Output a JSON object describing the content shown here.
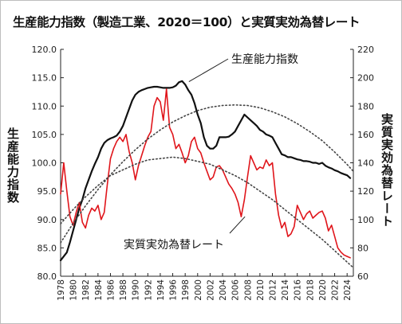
{
  "title": "生産能力指数（製造工業、2020＝100）と実質実効為替レート",
  "chart_data": {
    "type": "line",
    "title": "生産能力指数（製造工業、2020＝100）と実質実効為替レート",
    "xlabel": "",
    "xlim": [
      1978,
      2025
    ],
    "x_ticks": [
      "1978",
      "1980",
      "1982",
      "1984",
      "1986",
      "1988",
      "1990",
      "1992",
      "1994",
      "1996",
      "1998",
      "2000",
      "2002",
      "2004",
      "2006",
      "2008",
      "2010",
      "2012",
      "2014",
      "2016",
      "2018",
      "2020",
      "2022",
      "2024"
    ],
    "y_left": {
      "label": "生産能力指数",
      "range": [
        80,
        120
      ],
      "ticks": [
        "80.0",
        "85.0",
        "90.0",
        "95.0",
        "100.0",
        "105.0",
        "110.0",
        "115.0",
        "120.0"
      ]
    },
    "y_right": {
      "label": "実質実効為替レート",
      "range": [
        60,
        220
      ],
      "ticks": [
        "60",
        "80",
        "100",
        "120",
        "140",
        "160",
        "180",
        "200",
        "220"
      ]
    },
    "grid": false,
    "legend": "annotations",
    "annotations": [
      {
        "text": "生産能力指数",
        "series": "生産能力指数"
      },
      {
        "text": "実質実効為替レート",
        "series": "実質実効為替レート"
      }
    ],
    "series": [
      {
        "name": "生産能力指数",
        "axis": "left",
        "color": "#111111",
        "x": [
          1978.0,
          1978.5,
          1979.0,
          1979.5,
          1980.0,
          1980.5,
          1981.0,
          1981.5,
          1982.0,
          1982.5,
          1983.0,
          1983.5,
          1984.0,
          1984.5,
          1985.0,
          1985.5,
          1986.0,
          1986.5,
          1987.0,
          1987.5,
          1988.0,
          1988.5,
          1989.0,
          1989.5,
          1990.0,
          1990.5,
          1991.0,
          1991.5,
          1992.0,
          1992.5,
          1993.0,
          1993.5,
          1994.0,
          1994.5,
          1995.0,
          1995.5,
          1996.0,
          1996.5,
          1997.0,
          1997.5,
          1998.0,
          1998.5,
          1999.0,
          1999.5,
          2000.0,
          2000.5,
          2001.0,
          2001.5,
          2002.0,
          2002.5,
          2003.0,
          2003.5,
          2004.0,
          2004.5,
          2005.0,
          2005.5,
          2006.0,
          2006.5,
          2007.0,
          2007.5,
          2008.0,
          2008.5,
          2009.0,
          2009.5,
          2010.0,
          2010.5,
          2011.0,
          2011.5,
          2012.0,
          2012.5,
          2013.0,
          2013.5,
          2014.0,
          2014.5,
          2015.0,
          2015.5,
          2016.0,
          2016.5,
          2017.0,
          2017.5,
          2018.0,
          2018.5,
          2019.0,
          2019.5,
          2020.0,
          2020.5,
          2021.0,
          2021.5,
          2022.0,
          2022.5,
          2023.0,
          2023.5,
          2024.0,
          2024.5
        ],
        "values": [
          82.8,
          83.5,
          84.2,
          86.0,
          88.0,
          90.0,
          92.0,
          93.5,
          95.5,
          97.0,
          98.5,
          99.8,
          101.0,
          102.5,
          103.5,
          104.0,
          104.3,
          104.5,
          104.8,
          105.5,
          106.5,
          108.0,
          109.5,
          111.0,
          112.0,
          112.5,
          112.8,
          113.0,
          113.2,
          113.3,
          113.4,
          113.4,
          113.3,
          113.2,
          113.2,
          113.2,
          113.3,
          113.6,
          114.2,
          114.4,
          113.8,
          112.8,
          112.0,
          110.5,
          108.5,
          107.0,
          104.5,
          103.0,
          102.5,
          102.5,
          103.0,
          104.5,
          104.5,
          104.5,
          104.6,
          105.0,
          105.5,
          106.5,
          107.5,
          108.5,
          108.0,
          107.5,
          107.0,
          106.5,
          105.8,
          105.5,
          105.0,
          104.8,
          104.5,
          103.5,
          102.5,
          101.5,
          101.3,
          101.0,
          101.0,
          100.8,
          100.6,
          100.5,
          100.3,
          100.3,
          100.2,
          100.0,
          100.0,
          99.8,
          100.0,
          99.5,
          99.2,
          99.0,
          98.7,
          98.5,
          98.2,
          98.0,
          97.8,
          97.3
        ]
      },
      {
        "name": "実質実効為替レート",
        "axis": "right",
        "color": "#e0151b",
        "x": [
          1978.0,
          1978.5,
          1979.0,
          1979.5,
          1980.0,
          1980.5,
          1981.0,
          1981.5,
          1982.0,
          1982.5,
          1983.0,
          1983.5,
          1984.0,
          1984.5,
          1985.0,
          1985.5,
          1986.0,
          1986.5,
          1987.0,
          1987.5,
          1988.0,
          1988.5,
          1989.0,
          1989.5,
          1990.0,
          1990.5,
          1991.0,
          1991.5,
          1992.0,
          1992.5,
          1993.0,
          1993.5,
          1994.0,
          1994.5,
          1995.0,
          1995.5,
          1996.0,
          1996.5,
          1997.0,
          1997.5,
          1998.0,
          1998.5,
          1999.0,
          1999.5,
          2000.0,
          2000.5,
          2001.0,
          2001.5,
          2002.0,
          2002.5,
          2003.0,
          2003.5,
          2004.0,
          2004.5,
          2005.0,
          2005.5,
          2006.0,
          2006.5,
          2007.0,
          2007.5,
          2008.0,
          2008.5,
          2009.0,
          2009.5,
          2010.0,
          2010.5,
          2011.0,
          2011.5,
          2012.0,
          2012.5,
          2013.0,
          2013.5,
          2014.0,
          2014.5,
          2015.0,
          2015.5,
          2016.0,
          2016.5,
          2017.0,
          2017.5,
          2018.0,
          2018.5,
          2019.0,
          2019.5,
          2020.0,
          2020.5,
          2021.0,
          2021.5,
          2022.0,
          2022.5,
          2023.0,
          2023.5,
          2024.0,
          2024.5
        ],
        "values": [
          118,
          140,
          120,
          102,
          96,
          105,
          112,
          98,
          94,
          103,
          108,
          106,
          110,
          100,
          105,
          125,
          143,
          150,
          155,
          158,
          155,
          160,
          148,
          140,
          128,
          138,
          145,
          152,
          158,
          162,
          180,
          186,
          183,
          170,
          192,
          165,
          160,
          150,
          153,
          147,
          140,
          145,
          155,
          158,
          150,
          147,
          140,
          134,
          128,
          130,
          137,
          138,
          135,
          130,
          125,
          122,
          118,
          112,
          102,
          114,
          130,
          145,
          140,
          135,
          137,
          136,
          142,
          138,
          140,
          118,
          103,
          94,
          98,
          88,
          90,
          95,
          110,
          105,
          100,
          104,
          106,
          101,
          103,
          105,
          106,
          101,
          92,
          96,
          88,
          80,
          77,
          75,
          74,
          73
        ]
      },
      {
        "name": "",
        "axis": "left",
        "style": "dotted",
        "x": [
          1978,
          1980,
          1982,
          1984,
          1986,
          1988,
          1990,
          1992,
          1994,
          1996,
          1998,
          2000,
          2002,
          2004,
          2006,
          2008,
          2010,
          2012,
          2014,
          2016,
          2018,
          2020,
          2022,
          2024,
          2025
        ],
        "values": [
          85.9,
          89.3,
          92.4,
          95.3,
          97.9,
          100.2,
          102.3,
          104.2,
          105.8,
          107.2,
          108.3,
          109.2,
          109.8,
          110.1,
          110.2,
          110.1,
          109.7,
          109.0,
          108.1,
          106.9,
          105.5,
          103.9,
          101.9,
          99.7,
          98.5
        ]
      },
      {
        "name": "",
        "axis": "right",
        "style": "dotted",
        "x": [
          1978,
          1980,
          1982,
          1984,
          1986,
          1988,
          1990,
          1992,
          1994,
          1996,
          1998,
          2000,
          2002,
          2004,
          2006,
          2008,
          2010,
          2012,
          2014,
          2016,
          2018,
          2020,
          2022,
          2024,
          2025
        ],
        "values": [
          97,
          107,
          116,
          124,
          131,
          135,
          139,
          142,
          143,
          144,
          143,
          141,
          139,
          135,
          131,
          126,
          120,
          114,
          107,
          100,
          93,
          86,
          78,
          70,
          66
        ]
      }
    ]
  }
}
